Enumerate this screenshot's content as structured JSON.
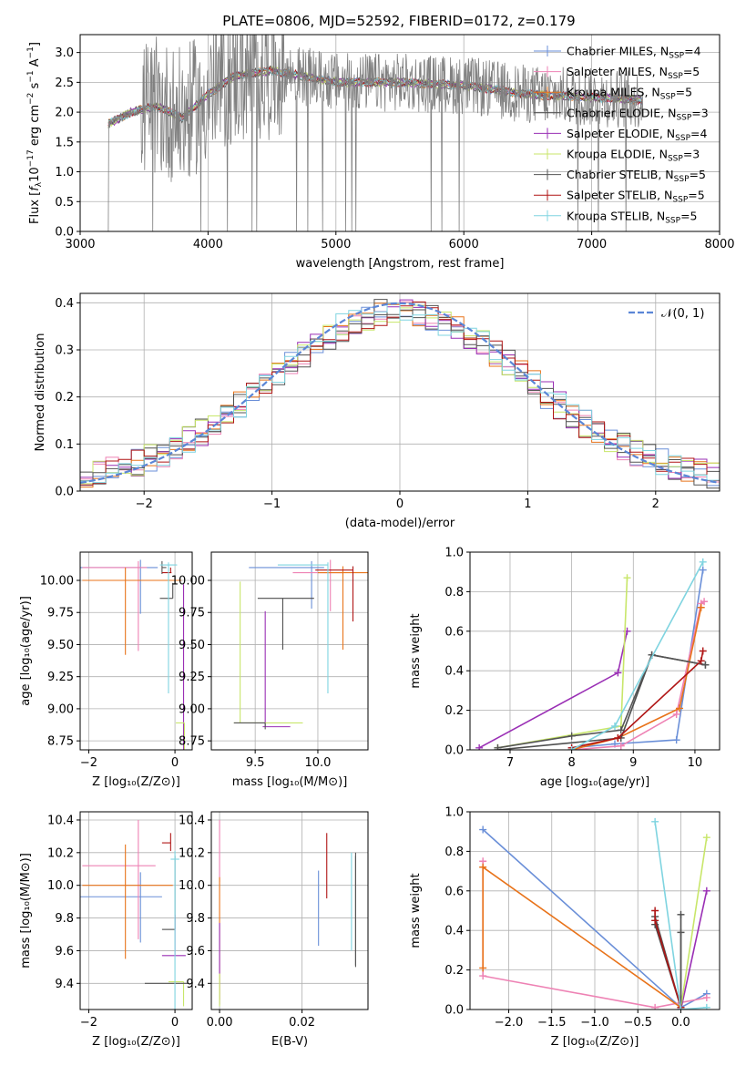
{
  "title": "PLATE=0806, MJD=52592, FIBERID=0172, z=0.179",
  "model_colors": [
    "#6a8fd8",
    "#ee82b4",
    "#e8731a",
    "#4d4d4d",
    "#9a2fb5",
    "#c8e66a",
    "#555555",
    "#b01515",
    "#7fd4e0"
  ],
  "chart_data": [
    {
      "id": "spectrum",
      "type": "line",
      "xlabel": "wavelength [Angstrom, rest frame]",
      "ylabel": "Flux [f_λ 10^-17 erg cm^-2 s^-1 A^-1]",
      "xlim": [
        3000,
        8000
      ],
      "ylim": [
        0,
        3.3
      ],
      "xticks": [
        "3000",
        "4000",
        "5000",
        "6000",
        "7000",
        "8000"
      ],
      "yticks": [
        "0.0",
        "0.5",
        "1.0",
        "1.5",
        "2.0",
        "2.5",
        "3.0"
      ],
      "legend_position": "right",
      "legend": [
        {
          "label": "Chabrier MILES, N",
          "sub": "SSP",
          "tail": "=4"
        },
        {
          "label": "Salpeter MILES, N",
          "sub": "SSP",
          "tail": "=5"
        },
        {
          "label": "Kroupa MILES, N",
          "sub": "SSP",
          "tail": "=5"
        },
        {
          "label": "Chabrier ELODIE, N",
          "sub": "SSP",
          "tail": "=3"
        },
        {
          "label": "Salpeter ELODIE, N",
          "sub": "SSP",
          "tail": "=4"
        },
        {
          "label": "Kroupa ELODIE, N",
          "sub": "SSP",
          "tail": "=3"
        },
        {
          "label": "Chabrier STELIB, N",
          "sub": "SSP",
          "tail": "=5"
        },
        {
          "label": "Salpeter STELIB, N",
          "sub": "SSP",
          "tail": "=5"
        },
        {
          "label": "Kroupa STELIB, N",
          "sub": "SSP",
          "tail": "=5"
        }
      ],
      "data_series": {
        "name": "data",
        "color": "#808080",
        "x_start": 3220,
        "x_end": 7400,
        "continuum": [
          [
            3220,
            1.8
          ],
          [
            3400,
            2.0
          ],
          [
            3600,
            2.1
          ],
          [
            3800,
            1.9
          ],
          [
            4000,
            2.3
          ],
          [
            4200,
            2.6
          ],
          [
            4500,
            2.7
          ],
          [
            5000,
            2.5
          ],
          [
            5500,
            2.5
          ],
          [
            6000,
            2.45
          ],
          [
            6500,
            2.3
          ],
          [
            7000,
            2.25
          ],
          [
            7400,
            2.2
          ]
        ],
        "noise_onset": 3480,
        "noise_amp_low": 0.08,
        "noise_amp_high": 0.9
      }
    },
    {
      "id": "residuals",
      "type": "histogram",
      "xlabel": "(data-model)/error",
      "ylabel": "Normed distribution",
      "xlim": [
        -2.5,
        2.5
      ],
      "ylim": [
        0,
        0.42
      ],
      "xticks": [
        "−2",
        "−1",
        "0",
        "1",
        "2"
      ],
      "yticks": [
        "0.0",
        "0.1",
        "0.2",
        "0.3",
        "0.4"
      ],
      "bin_width": 0.1,
      "curve_label": "𝒩(0, 1)",
      "curve_color": "#5b86d6",
      "legend_position": "top-right"
    },
    {
      "id": "age-vs-Z",
      "type": "scatter",
      "xlabel": "Z [log₁₀(Z/Z⊙)]",
      "ylabel": "age  [log₁₀(age/yr)]",
      "xlim": [
        -2.2,
        0.4
      ],
      "ylim": [
        8.68,
        10.22
      ],
      "xticks": [
        "−2",
        "0"
      ],
      "yticks": [
        "8.75",
        "9.00",
        "9.25",
        "9.50",
        "9.75",
        "10.00"
      ],
      "points": [
        {
          "x": -0.8,
          "y": 10.1,
          "xerr": [
            1.4,
            0.4
          ],
          "yerr": [
            0.36,
            0.06
          ]
        },
        {
          "x": -0.85,
          "y": 10.1,
          "xerr": [
            1.3,
            0.2
          ],
          "yerr": [
            0.65,
            0.05
          ]
        },
        {
          "x": -1.15,
          "y": 10.0,
          "xerr": [
            1.0,
            1.3
          ],
          "yerr": [
            0.58,
            0.1
          ]
        },
        {
          "x": -0.05,
          "y": 9.86,
          "xerr": [
            0.3,
            0.0
          ],
          "yerr": [
            0.0,
            0.12
          ]
        },
        {
          "x": 0.2,
          "y": 8.87,
          "xerr": [
            0.0,
            0.02
          ],
          "yerr": [
            1.0,
            1.1
          ]
        },
        {
          "x": 0.22,
          "y": 8.89,
          "xerr": [
            0.2,
            0.0
          ],
          "yerr": [
            0.3,
            0.0
          ]
        },
        {
          "x": -0.3,
          "y": 10.1,
          "xerr": [
            0.0,
            0.1
          ],
          "yerr": [
            0.05,
            0.05
          ]
        },
        {
          "x": -0.1,
          "y": 10.06,
          "xerr": [
            0.2,
            0.02
          ],
          "yerr": [
            0.0,
            0.04
          ]
        },
        {
          "x": -0.15,
          "y": 10.12,
          "xerr": [
            0.2,
            0.2
          ],
          "yerr": [
            1.0,
            0.02
          ]
        }
      ]
    },
    {
      "id": "age-vs-mass",
      "type": "scatter",
      "xlabel": "mass [log₁₀(M/M⊙)]",
      "ylabel": "",
      "xlim": [
        9.15,
        10.4
      ],
      "ylim": [
        8.68,
        10.22
      ],
      "xticks": [
        "9.5",
        "10.0"
      ],
      "yticks": [
        "8.75",
        "9.00",
        "9.25",
        "9.50",
        "9.75",
        "10.00"
      ],
      "points": [
        {
          "x": 9.95,
          "y": 10.1,
          "xerr": [
            0.5,
            0.1
          ],
          "yerr": [
            0.32,
            0.05
          ]
        },
        {
          "x": 10.1,
          "y": 10.06,
          "xerr": [
            0.3,
            0.1
          ],
          "yerr": [
            0.3,
            0.1
          ]
        },
        {
          "x": 10.2,
          "y": 10.06,
          "xerr": [
            0.2,
            0.2
          ],
          "yerr": [
            0.6,
            0.05
          ]
        },
        {
          "x": 9.72,
          "y": 9.86,
          "xerr": [
            0.2,
            0.25
          ],
          "yerr": [
            0.4,
            0.0
          ]
        },
        {
          "x": 9.58,
          "y": 8.86,
          "xerr": [
            0.02,
            0.2
          ],
          "yerr": [
            0.0,
            0.9
          ]
        },
        {
          "x": 9.38,
          "y": 8.89,
          "xerr": [
            0.05,
            0.5
          ],
          "yerr": [
            0.0,
            1.1
          ]
        },
        {
          "x": 9.58,
          "y": 8.89,
          "xerr": [
            0.25,
            0.0
          ],
          "yerr": [
            0.05,
            0.0
          ]
        },
        {
          "x": 10.28,
          "y": 10.08,
          "xerr": [
            0.3,
            0.0
          ],
          "yerr": [
            0.4,
            0.03
          ]
        },
        {
          "x": 10.08,
          "y": 10.12,
          "xerr": [
            0.4,
            0.0
          ],
          "yerr": [
            1.0,
            0.02
          ]
        }
      ]
    },
    {
      "id": "massweight-vs-age",
      "type": "line",
      "xlabel": "age  [log₁₀(age/yr)]",
      "ylabel": "mass weight",
      "xlim": [
        6.35,
        10.4
      ],
      "ylim": [
        0,
        1.0
      ],
      "xticks": [
        "7",
        "8",
        "9",
        "10"
      ],
      "yticks": [
        "0.0",
        "0.2",
        "0.4",
        "0.6",
        "0.8",
        "1.0"
      ],
      "lines": [
        {
          "x": [
            8.0,
            8.7,
            9.7,
            10.13
          ],
          "y": [
            0.01,
            0.03,
            0.05,
            0.91
          ]
        },
        {
          "x": [
            8.0,
            8.8,
            9.7,
            10.1,
            10.15
          ],
          "y": [
            0.0,
            0.02,
            0.18,
            0.74,
            0.75
          ]
        },
        {
          "x": [
            8.0,
            8.75,
            9.75,
            10.1
          ],
          "y": [
            0.0,
            0.06,
            0.21,
            0.72
          ]
        },
        {
          "x": [
            6.8,
            8.8,
            9.3,
            10.17
          ],
          "y": [
            0.0,
            0.06,
            0.48,
            0.43
          ]
        },
        {
          "x": [
            6.5,
            8.75,
            8.9
          ],
          "y": [
            0.01,
            0.39,
            0.6
          ]
        },
        {
          "x": [
            6.8,
            8.8,
            8.9
          ],
          "y": [
            0.01,
            0.12,
            0.87
          ]
        },
        {
          "x": [
            6.8,
            8.0,
            8.8,
            9.3,
            10.17
          ],
          "y": [
            0.01,
            0.07,
            0.1,
            0.48,
            0.43
          ]
        },
        {
          "x": [
            8.0,
            8.75,
            10.1,
            10.13
          ],
          "y": [
            0.01,
            0.06,
            0.45,
            0.5
          ]
        },
        {
          "x": [
            8.0,
            8.7,
            10.13
          ],
          "y": [
            0.0,
            0.12,
            0.95
          ]
        }
      ]
    },
    {
      "id": "mass-vs-Z",
      "type": "scatter",
      "xlabel": "Z [log₁₀(Z/Z⊙)]",
      "ylabel": "mass [log₁₀(M/M⊙)]",
      "xlim": [
        -2.2,
        0.4
      ],
      "ylim": [
        9.24,
        10.45
      ],
      "xticks": [
        "−2",
        "0"
      ],
      "yticks": [
        "9.4",
        "9.6",
        "9.8",
        "10.0",
        "10.2",
        "10.4"
      ],
      "points": [
        {
          "x": -0.8,
          "y": 9.93,
          "xerr": [
            1.4,
            0.5
          ],
          "yerr": [
            0.28,
            0.15
          ]
        },
        {
          "x": -0.85,
          "y": 10.12,
          "xerr": [
            1.3,
            0.4
          ],
          "yerr": [
            0.45,
            0.28
          ]
        },
        {
          "x": -1.15,
          "y": 10.0,
          "xerr": [
            1.0,
            1.1
          ],
          "yerr": [
            0.45,
            0.25
          ]
        },
        {
          "x": 0.0,
          "y": 9.73,
          "xerr": [
            0.3,
            0.0
          ],
          "yerr": [
            0.0,
            0.45
          ]
        },
        {
          "x": 0.0,
          "y": 9.57,
          "xerr": [
            0.3,
            0.25
          ],
          "yerr": [
            0.0,
            0.25
          ]
        },
        {
          "x": 0.2,
          "y": 9.41,
          "xerr": [
            0.35,
            0.0
          ],
          "yerr": [
            0.15,
            0.0
          ]
        },
        {
          "x": -0.2,
          "y": 9.4,
          "xerr": [
            0.5,
            0.5
          ],
          "yerr": [
            0.0,
            0.0
          ]
        },
        {
          "x": -0.1,
          "y": 10.26,
          "xerr": [
            0.2,
            0.0
          ],
          "yerr": [
            0.05,
            0.06
          ]
        },
        {
          "x": 0.0,
          "y": 10.16,
          "xerr": [
            0.1,
            0.1
          ],
          "yerr": [
            1.0,
            0.05
          ]
        }
      ]
    },
    {
      "id": "mass-vs-EBV",
      "type": "scatter",
      "xlabel": "E(B-V)",
      "ylabel": "",
      "xlim": [
        -0.002,
        0.036
      ],
      "ylim": [
        9.24,
        10.45
      ],
      "xticks": [
        "0.00",
        "0.02"
      ],
      "yticks": [
        "9.4",
        "9.6",
        "9.8",
        "10.0",
        "10.2",
        "10.4"
      ],
      "points": [
        {
          "x": 0.024,
          "y": 9.93,
          "xerr": [
            0.0,
            0.0
          ],
          "yerr": [
            0.3,
            0.16
          ]
        },
        {
          "x": 0.0,
          "y": 10.12,
          "xerr": [
            0.0,
            0.0
          ],
          "yerr": [
            0.1,
            0.28
          ]
        },
        {
          "x": 0.0,
          "y": 10.0,
          "xerr": [
            0.0,
            0.0
          ],
          "yerr": [
            0.7,
            0.05
          ]
        },
        {
          "x": 0.033,
          "y": 9.73,
          "xerr": [
            0.0,
            0.0
          ],
          "yerr": [
            0.22,
            0.45
          ]
        },
        {
          "x": 0.0,
          "y": 9.57,
          "xerr": [
            0.0,
            0.0
          ],
          "yerr": [
            0.3,
            0.2
          ]
        },
        {
          "x": 0.0,
          "y": 9.41,
          "xerr": [
            0.0,
            0.0
          ],
          "yerr": [
            0.15,
            0.05
          ]
        },
        {
          "x": 0.033,
          "y": 9.6,
          "xerr": [
            0.0,
            0.0
          ],
          "yerr": [
            0.1,
            0.6
          ]
        },
        {
          "x": 0.026,
          "y": 10.12,
          "xerr": [
            0.0,
            0.0
          ],
          "yerr": [
            0.2,
            0.2
          ]
        },
        {
          "x": 0.032,
          "y": 10.0,
          "xerr": [
            0.0,
            0.0
          ],
          "yerr": [
            0.4,
            0.2
          ]
        }
      ]
    },
    {
      "id": "massweight-vs-Z",
      "type": "line",
      "xlabel": "Z [log₁₀(Z/Z⊙)]",
      "ylabel": "mass weight",
      "xlim": [
        -2.45,
        0.45
      ],
      "ylim": [
        0,
        1.0
      ],
      "xticks": [
        "−2.0",
        "−1.5",
        "−1.0",
        "−0.5",
        "0.0"
      ],
      "yticks": [
        "0.0",
        "0.2",
        "0.4",
        "0.6",
        "0.8",
        "1.0"
      ],
      "lines": [
        {
          "x": [
            -2.3,
            0.0,
            0.3
          ],
          "y": [
            0.91,
            0.01,
            0.08
          ]
        },
        {
          "x": [
            -2.3,
            -2.3,
            -0.3,
            0.3
          ],
          "y": [
            0.75,
            0.17,
            0.01,
            0.06
          ]
        },
        {
          "x": [
            -2.3,
            -2.3,
            0.0
          ],
          "y": [
            0.21,
            0.72,
            0.01
          ]
        },
        {
          "x": [
            -0.3,
            0.0,
            0.0
          ],
          "y": [
            0.43,
            0.01,
            0.48
          ]
        },
        {
          "x": [
            0.0,
            0.3
          ],
          "y": [
            0.0,
            0.6
          ]
        },
        {
          "x": [
            0.0,
            0.3
          ],
          "y": [
            0.01,
            0.87
          ]
        },
        {
          "x": [
            -0.3,
            0.0,
            0.0
          ],
          "y": [
            0.47,
            0.01,
            0.39
          ]
        },
        {
          "x": [
            -0.3,
            -0.3,
            0.0
          ],
          "y": [
            0.5,
            0.45,
            0.01
          ]
        },
        {
          "x": [
            -0.3,
            0.0,
            0.3
          ],
          "y": [
            0.95,
            0.0,
            0.01
          ]
        }
      ]
    }
  ]
}
